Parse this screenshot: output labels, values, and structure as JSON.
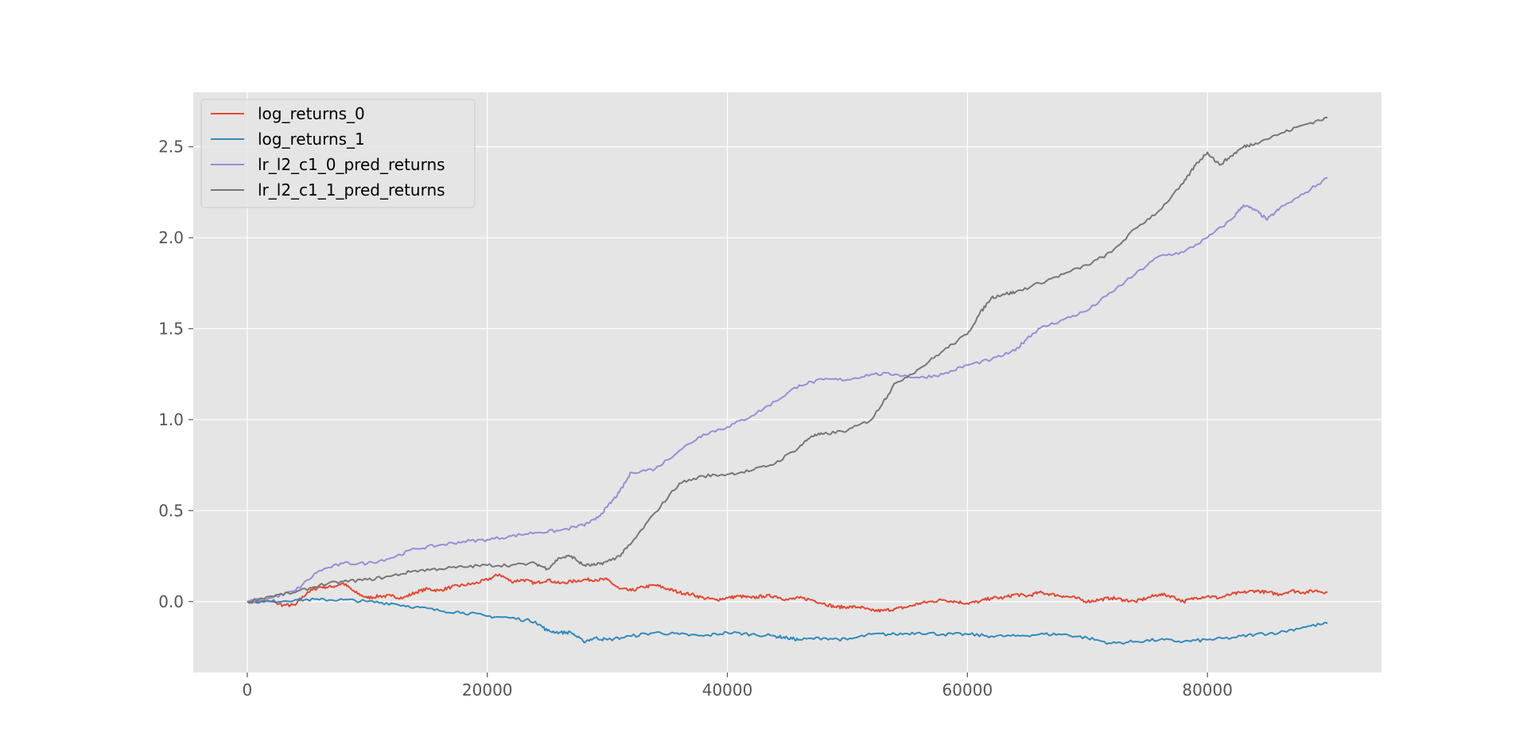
{
  "chart_data": {
    "type": "line",
    "title": "",
    "xlabel": "",
    "ylabel": "",
    "xlim": [
      -4500,
      94500
    ],
    "ylim": [
      -0.39,
      2.8
    ],
    "xticks": [
      0,
      20000,
      40000,
      60000,
      80000
    ],
    "xtick_labels": [
      "0",
      "20000",
      "40000",
      "60000",
      "80000"
    ],
    "yticks": [
      0.0,
      0.5,
      1.0,
      1.5,
      2.0,
      2.5
    ],
    "ytick_labels": [
      "0.0",
      "0.5",
      "1.0",
      "1.5",
      "2.0",
      "2.5"
    ],
    "grid": true,
    "legend_position": "top-left",
    "series": [
      {
        "name": "log_returns_0",
        "color": "#e24a33",
        "x": [
          0,
          2000,
          3000,
          4000,
          5000,
          6000,
          7000,
          8000,
          9000,
          10000,
          11000,
          12000,
          13000,
          14000,
          15000,
          16000,
          17000,
          18000,
          19000,
          20000,
          21000,
          22000,
          23000,
          24000,
          25000,
          26000,
          27000,
          28000,
          29000,
          30000,
          31000,
          32000,
          33000,
          34000,
          35000,
          36000,
          37000,
          38000,
          39000,
          40000,
          41000,
          42000,
          43000,
          44000,
          45000,
          46000,
          47000,
          48000,
          49000,
          50000,
          51000,
          52000,
          53000,
          54000,
          55000,
          56000,
          57000,
          58000,
          59000,
          60000,
          61000,
          62000,
          63000,
          64000,
          65000,
          66000,
          67000,
          68000,
          69000,
          70000,
          71000,
          72000,
          73000,
          74000,
          75000,
          76000,
          77000,
          78000,
          79000,
          80000,
          81000,
          82000,
          83000,
          84000,
          85000,
          86000,
          87000,
          88000,
          89000,
          90000
        ],
        "y": [
          0,
          0.0,
          -0.02,
          -0.02,
          0.05,
          0.08,
          0.08,
          0.1,
          0.05,
          0.02,
          0.03,
          0.03,
          0.02,
          0.05,
          0.07,
          0.06,
          0.08,
          0.09,
          0.1,
          0.12,
          0.15,
          0.11,
          0.12,
          0.1,
          0.12,
          0.1,
          0.11,
          0.12,
          0.12,
          0.12,
          0.07,
          0.06,
          0.08,
          0.09,
          0.07,
          0.05,
          0.04,
          0.02,
          0.01,
          0.02,
          0.03,
          0.02,
          0.03,
          0.03,
          0.01,
          0.02,
          0.01,
          -0.01,
          -0.03,
          -0.03,
          -0.03,
          -0.05,
          -0.05,
          -0.04,
          -0.03,
          -0.01,
          0.0,
          0.01,
          0.0,
          -0.01,
          0.0,
          0.02,
          0.02,
          0.04,
          0.03,
          0.05,
          0.04,
          0.03,
          0.02,
          0.0,
          0.01,
          0.02,
          0.01,
          0.0,
          0.02,
          0.04,
          0.03,
          0.0,
          0.02,
          0.03,
          0.02,
          0.04,
          0.05,
          0.06,
          0.05,
          0.04,
          0.06,
          0.05,
          0.06,
          0.05
        ]
      },
      {
        "name": "log_returns_1",
        "color": "#348abd",
        "x": [
          0,
          2000,
          4000,
          6000,
          8000,
          10000,
          12000,
          14000,
          16000,
          18000,
          20000,
          22000,
          24000,
          25000,
          26000,
          27000,
          28000,
          29000,
          30000,
          32000,
          34000,
          36000,
          38000,
          40000,
          42000,
          44000,
          45000,
          46000,
          48000,
          50000,
          52000,
          54000,
          56000,
          58000,
          60000,
          62000,
          64000,
          66000,
          68000,
          70000,
          72000,
          74000,
          76000,
          78000,
          80000,
          82000,
          84000,
          86000,
          88000,
          90000
        ],
        "y": [
          0,
          0.0,
          0.01,
          0.01,
          0.01,
          0.0,
          -0.01,
          -0.03,
          -0.05,
          -0.06,
          -0.08,
          -0.09,
          -0.11,
          -0.16,
          -0.17,
          -0.17,
          -0.22,
          -0.2,
          -0.21,
          -0.19,
          -0.17,
          -0.18,
          -0.19,
          -0.17,
          -0.18,
          -0.19,
          -0.2,
          -0.21,
          -0.2,
          -0.21,
          -0.18,
          -0.18,
          -0.17,
          -0.18,
          -0.18,
          -0.19,
          -0.19,
          -0.18,
          -0.18,
          -0.2,
          -0.23,
          -0.22,
          -0.21,
          -0.22,
          -0.21,
          -0.2,
          -0.18,
          -0.17,
          -0.14,
          -0.12
        ]
      },
      {
        "name": "lr_l2_c1_0_pred_returns",
        "color": "#988ed5",
        "x": [
          0,
          2000,
          4000,
          6000,
          8000,
          10000,
          12000,
          14000,
          16000,
          18000,
          20000,
          22000,
          24000,
          26000,
          28000,
          29000,
          30000,
          31000,
          32000,
          34000,
          36000,
          38000,
          40000,
          42000,
          44000,
          46000,
          48000,
          50000,
          52000,
          54000,
          56000,
          58000,
          60000,
          62000,
          64000,
          65000,
          66000,
          68000,
          70000,
          72000,
          74000,
          76000,
          78000,
          80000,
          82000,
          83000,
          84000,
          85000,
          86000,
          88000,
          90000
        ],
        "y": [
          0,
          0.02,
          0.06,
          0.17,
          0.21,
          0.21,
          0.24,
          0.29,
          0.31,
          0.33,
          0.34,
          0.36,
          0.38,
          0.39,
          0.42,
          0.45,
          0.52,
          0.6,
          0.71,
          0.73,
          0.83,
          0.92,
          0.96,
          1.02,
          1.1,
          1.19,
          1.22,
          1.22,
          1.25,
          1.25,
          1.23,
          1.25,
          1.3,
          1.33,
          1.38,
          1.45,
          1.5,
          1.55,
          1.6,
          1.7,
          1.8,
          1.9,
          1.92,
          2.0,
          2.1,
          2.18,
          2.15,
          2.1,
          2.16,
          2.24,
          2.33
        ]
      },
      {
        "name": "lr_l2_c1_1_pred_returns",
        "color": "#777777",
        "x": [
          0,
          2000,
          4000,
          6000,
          8000,
          10000,
          12000,
          14000,
          16000,
          18000,
          20000,
          22000,
          24000,
          25000,
          26000,
          27000,
          28000,
          29000,
          30000,
          31000,
          32000,
          34000,
          36000,
          38000,
          40000,
          42000,
          44000,
          46000,
          47000,
          48000,
          50000,
          52000,
          53000,
          54000,
          56000,
          58000,
          60000,
          61000,
          62000,
          63000,
          64000,
          66000,
          68000,
          70000,
          72000,
          74000,
          76000,
          78000,
          79000,
          80000,
          81000,
          82000,
          83000,
          84000,
          86000,
          88000,
          90000
        ],
        "y": [
          0,
          0.03,
          0.05,
          0.09,
          0.11,
          0.12,
          0.14,
          0.17,
          0.18,
          0.19,
          0.2,
          0.2,
          0.21,
          0.18,
          0.24,
          0.25,
          0.2,
          0.2,
          0.22,
          0.25,
          0.32,
          0.49,
          0.65,
          0.69,
          0.7,
          0.72,
          0.76,
          0.85,
          0.91,
          0.92,
          0.94,
          1.0,
          1.1,
          1.2,
          1.28,
          1.38,
          1.47,
          1.58,
          1.67,
          1.69,
          1.7,
          1.75,
          1.8,
          1.85,
          1.92,
          2.05,
          2.15,
          2.3,
          2.4,
          2.47,
          2.4,
          2.45,
          2.5,
          2.52,
          2.57,
          2.62,
          2.66
        ]
      }
    ]
  }
}
